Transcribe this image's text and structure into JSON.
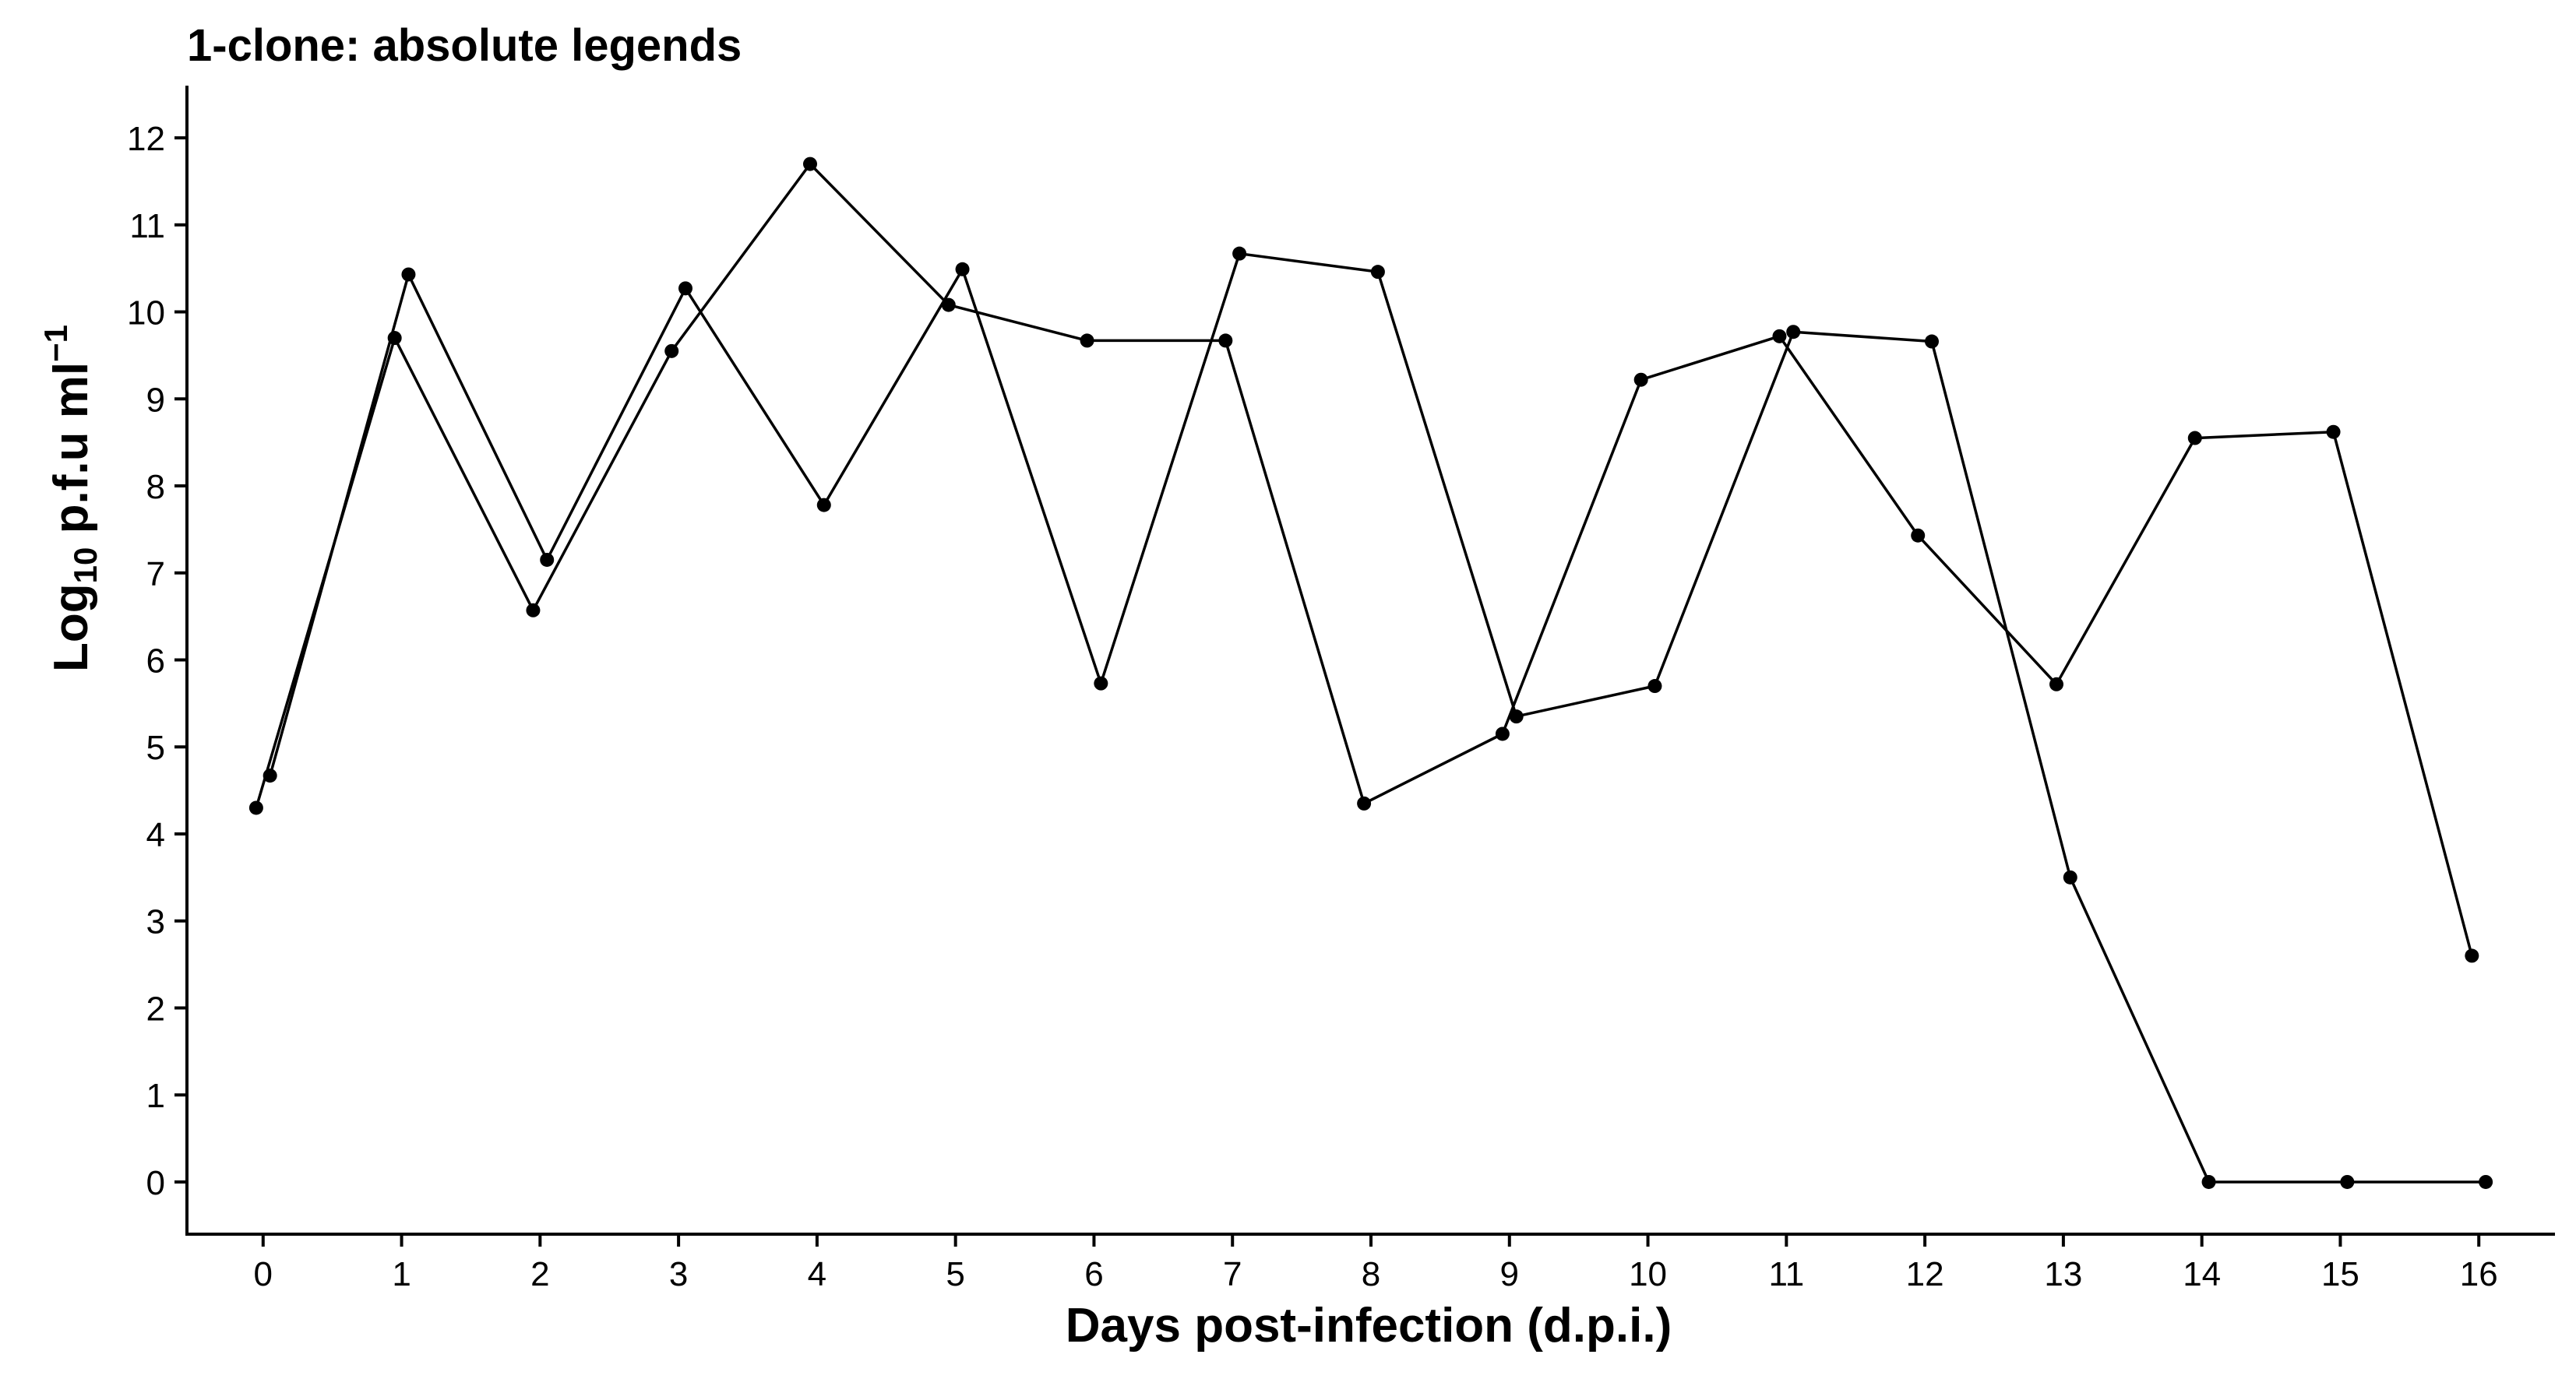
{
  "chart_data": {
    "type": "line",
    "title": "1-clone: absolute legends",
    "xlabel": "Days post-infection (d.p.i.)",
    "ylabel": {
      "prefix": "Log",
      "subscript": "10",
      "main": " p.f.u ml",
      "superscript": "−1"
    },
    "x_ticks": [
      0,
      1,
      2,
      3,
      4,
      5,
      6,
      7,
      8,
      9,
      10,
      11,
      12,
      13,
      14,
      15,
      16
    ],
    "y_ticks": [
      0,
      1,
      2,
      3,
      4,
      5,
      6,
      7,
      8,
      9,
      10,
      11,
      12
    ],
    "xlim": [
      -0.55,
      16.55
    ],
    "ylim": [
      -0.6,
      12.6
    ],
    "grid": false,
    "legend": "none",
    "line_color": "#000000",
    "point_color": "#000000",
    "series": [
      {
        "points": [
          {
            "x": -0.05,
            "y": 4.3
          },
          {
            "x": 0.95,
            "y": 9.7
          },
          {
            "x": 1.95,
            "y": 6.57
          },
          {
            "x": 2.95,
            "y": 9.55
          },
          {
            "x": 3.95,
            "y": 11.7
          },
          {
            "x": 4.95,
            "y": 10.08
          },
          {
            "x": 5.95,
            "y": 9.67
          },
          {
            "x": 6.95,
            "y": 9.67
          },
          {
            "x": 7.95,
            "y": 4.35
          },
          {
            "x": 8.95,
            "y": 5.15
          },
          {
            "x": 9.95,
            "y": 9.22
          },
          {
            "x": 10.95,
            "y": 9.72
          },
          {
            "x": 11.95,
            "y": 7.43
          },
          {
            "x": 12.95,
            "y": 5.72
          },
          {
            "x": 13.95,
            "y": 8.55
          },
          {
            "x": 14.95,
            "y": 8.62
          },
          {
            "x": 15.95,
            "y": 2.6
          }
        ]
      },
      {
        "points": [
          {
            "x": 0.05,
            "y": 4.67
          },
          {
            "x": 1.05,
            "y": 10.43
          },
          {
            "x": 2.05,
            "y": 7.15
          },
          {
            "x": 3.05,
            "y": 10.27
          },
          {
            "x": 4.05,
            "y": 7.78
          },
          {
            "x": 5.05,
            "y": 10.49
          },
          {
            "x": 6.05,
            "y": 5.73
          },
          {
            "x": 7.05,
            "y": 10.67
          },
          {
            "x": 8.05,
            "y": 10.46
          },
          {
            "x": 9.05,
            "y": 5.35
          },
          {
            "x": 10.05,
            "y": 5.7
          },
          {
            "x": 11.05,
            "y": 9.77
          },
          {
            "x": 12.05,
            "y": 9.66
          },
          {
            "x": 13.05,
            "y": 3.5
          },
          {
            "x": 14.05,
            "y": 0
          },
          {
            "x": 15.05,
            "y": 0
          },
          {
            "x": 16.05,
            "y": 0
          }
        ]
      }
    ]
  }
}
